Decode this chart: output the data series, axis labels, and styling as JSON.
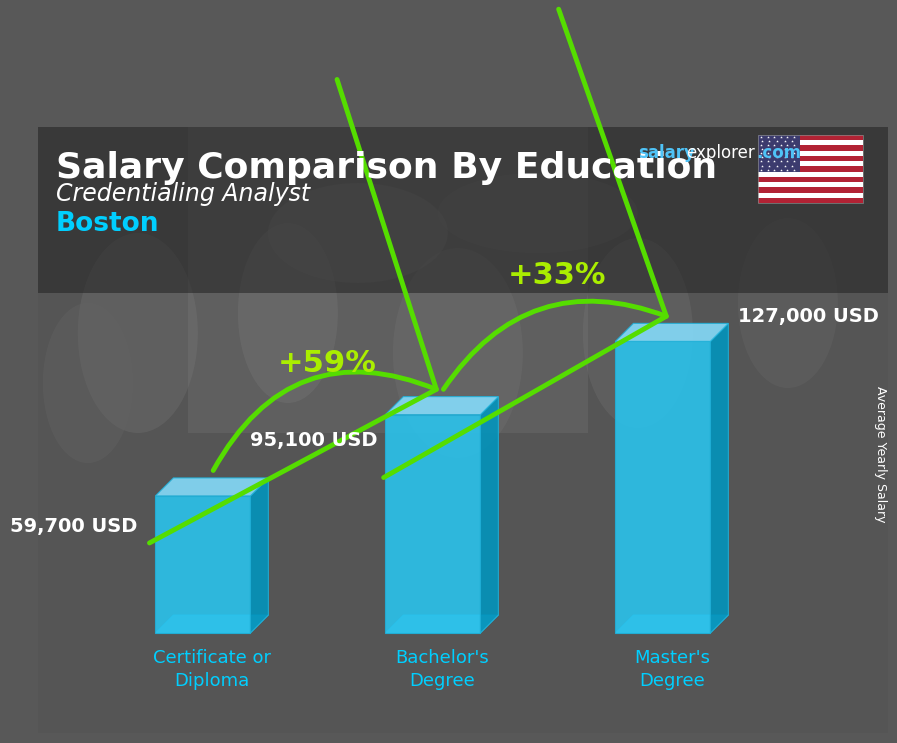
{
  "title": "Salary Comparison By Education",
  "subtitle": "Credentialing Analyst",
  "city": "Boston",
  "ylabel": "Average Yearly Salary",
  "categories": [
    "Certificate or\nDiploma",
    "Bachelor's\nDegree",
    "Master's\nDegree"
  ],
  "values": [
    59700,
    95100,
    127000
  ],
  "value_labels": [
    "59,700 USD",
    "95,100 USD",
    "127,000 USD"
  ],
  "pct_labels": [
    "+59%",
    "+33%"
  ],
  "bar_front": "#29C5F0",
  "bar_top": "#85DFFF",
  "bar_side": "#0095BF",
  "bar_bottom_side": "#55C5E0",
  "text_white": "#FFFFFF",
  "text_cyan": "#00CFFF",
  "text_green": "#AAEE00",
  "arrow_green": "#55DD00",
  "bg_dark": "#585858",
  "bg_overlay": "#404040",
  "title_fs": 26,
  "subtitle_fs": 17,
  "city_fs": 19,
  "val_fs": 14,
  "pct_fs": 22,
  "cat_fs": 13,
  "web_fs": 12,
  "ylabel_fs": 9
}
